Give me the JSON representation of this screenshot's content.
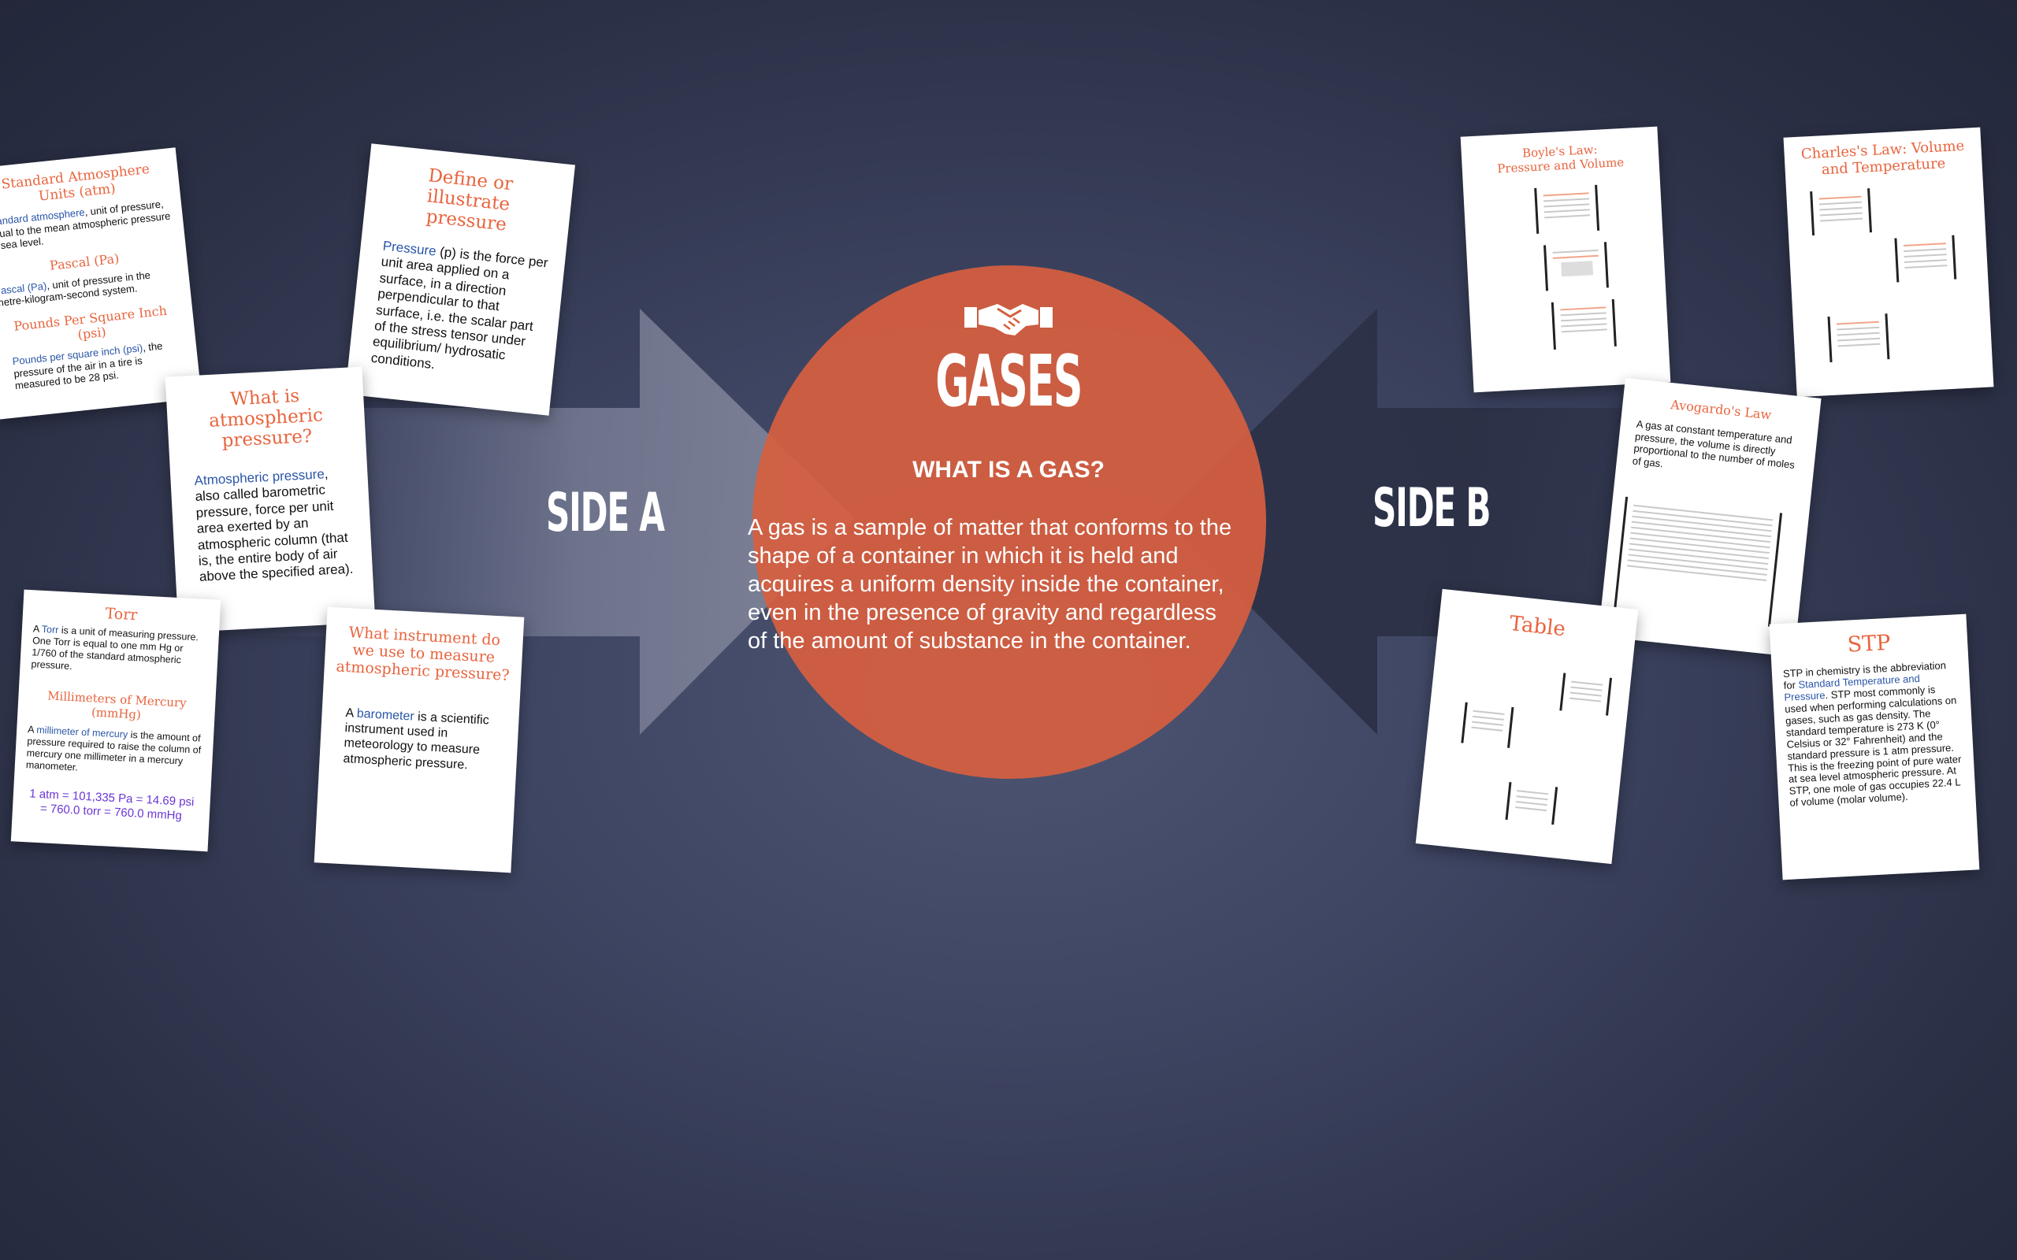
{
  "colors": {
    "accent": "#e8643e",
    "link": "#2a56a8",
    "formula": "#6a35d6",
    "circle": "#d65f3f",
    "background": "#3e4562"
  },
  "center": {
    "icon": "handshake-icon",
    "title": "GASES",
    "question": "WHAT IS A GAS?",
    "description_lines": [
      "A gas is a sample of matter that conforms to the",
      "shape of a container in which it is held and",
      "acquires a uniform density inside the container,",
      "even in the presence of gravity and regardless",
      "of the amount of substance in the container."
    ]
  },
  "side_a": {
    "label": "SIDE A"
  },
  "side_b": {
    "label": "SIDE B"
  },
  "cards_a": {
    "units": {
      "title": "Standard Atmosphere Units (atm)",
      "atm_link": "Standard atmosphere",
      "atm_text": ", unit of pressure, equal to the mean atmospheric pressure at sea level.",
      "pascal_title": "Pascal (Pa)",
      "pascal_link": "Pascal (Pa)",
      "pascal_text": ", unit of pressure in the metre-kilogram-second system.",
      "psi_title": "Pounds Per Square Inch (psi)",
      "psi_link": "Pounds per square inch (psi)",
      "psi_text": ", the pressure of the air in a tire is measured to be 28 psi."
    },
    "define": {
      "title": "Define or illustrate pressure",
      "link": "Pressure",
      "text": " (p) is the force per unit area applied on a surface, in a direction perpendicular to that surface, i.e. the scalar part of the stress tensor under equilibrium/ hydrosatic conditions."
    },
    "atmospheric": {
      "title": "What is atmospheric pressure?",
      "link": "Atmospheric pressure",
      "text": ", also called barometric pressure, force per unit area exerted by an atmospheric column (that is, the entire body of air above the specified area)."
    },
    "torr": {
      "title": "Torr",
      "t1": "A ",
      "link": "Torr",
      "t2": " is a unit of measuring pressure. One Torr is equal to one mm Hg or 1/760 of the standard atmospheric pressure.",
      "mm_title": "Millimeters of Mercury  (mmHg)",
      "m1": "A ",
      "mm_link": "millimeter of mercury",
      "m2": " is the amount of pressure required to raise the column of mercury one millimeter in a mercury manometer.",
      "formula": "1 atm = 101,335 Pa = 14.69 psi = 760.0 torr = 760.0 mmHg"
    },
    "instrument": {
      "title": "What instrument do we use to measure atmospheric pressure?",
      "t1": "A ",
      "link": "barometer",
      "t2": " is a scientific instrument used in meteorology to measure atmospheric pressure."
    }
  },
  "cards_b": {
    "boyle": {
      "title": "Boyle's Law: Pressure and Volume"
    },
    "charles": {
      "title": "Charles's Law: Volume and Temperature"
    },
    "avogadro": {
      "title": "Avogardo's Law",
      "text": "A gas at constant temperature and pressure, the volume is directly proportional to the number of moles of gas."
    },
    "table": {
      "title": "Table"
    },
    "stp": {
      "title": "STP",
      "t1": "STP in chemistry is the abbreviation for ",
      "link": "Standard Temperature and Pressure",
      "t2": ". STP most commonly is used when performing calculations on gases, such as gas density. The standard temperature is 273 K (0° Celsius or 32° Fahrenheit) and the standard pressure is 1 atm pressure. This is the freezing point of pure water at sea level atmospheric pressure. At STP, one mole of gas occupies 22.4 L of volume (molar volume)."
    }
  }
}
